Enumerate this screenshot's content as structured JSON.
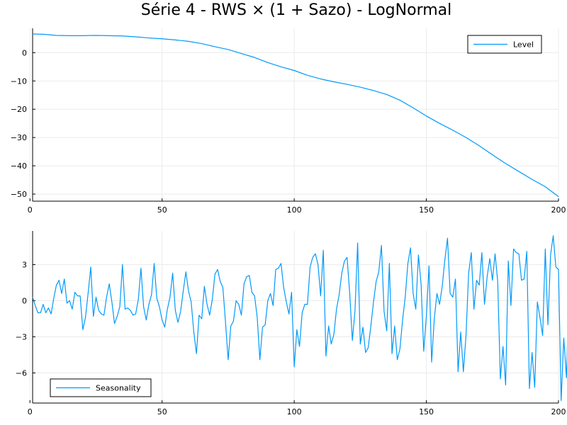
{
  "title": "Série 4 - RWS × (1 + Sazo) - LogNormal",
  "colors": {
    "series": "#009AFA",
    "axis": "#000000",
    "grid": "#EBEBEB",
    "background": "#FFFFFF"
  },
  "chart_data": [
    {
      "type": "line",
      "xlim": [
        1,
        200
      ],
      "ylim": [
        -52.5,
        8.6
      ],
      "xticks": [
        0,
        50,
        100,
        150,
        200
      ],
      "yticks": [
        0,
        -10,
        -20,
        -30,
        -40,
        -50
      ],
      "grid": true,
      "legend_position": "top-right",
      "series": [
        {
          "name": "Level",
          "points": [
            [
              1,
              6.6
            ],
            [
              5,
              6.5
            ],
            [
              10,
              6.1
            ],
            [
              15,
              6.0
            ],
            [
              20,
              6.0
            ],
            [
              25,
              6.1
            ],
            [
              30,
              6.0
            ],
            [
              35,
              5.9
            ],
            [
              40,
              5.6
            ],
            [
              45,
              5.2
            ],
            [
              50,
              4.9
            ],
            [
              55,
              4.5
            ],
            [
              60,
              4.0
            ],
            [
              65,
              3.2
            ],
            [
              70,
              2.1
            ],
            [
              75,
              1.1
            ],
            [
              80,
              -0.3
            ],
            [
              85,
              -1.7
            ],
            [
              90,
              -3.5
            ],
            [
              95,
              -5.0
            ],
            [
              100,
              -6.3
            ],
            [
              105,
              -8.0
            ],
            [
              110,
              -9.3
            ],
            [
              115,
              -10.3
            ],
            [
              120,
              -11.2
            ],
            [
              125,
              -12.2
            ],
            [
              130,
              -13.4
            ],
            [
              135,
              -14.8
            ],
            [
              140,
              -16.8
            ],
            [
              145,
              -19.5
            ],
            [
              150,
              -22.4
            ],
            [
              155,
              -25.0
            ],
            [
              160,
              -27.4
            ],
            [
              165,
              -30.0
            ],
            [
              170,
              -32.9
            ],
            [
              175,
              -36.1
            ],
            [
              180,
              -39.2
            ],
            [
              185,
              -42.0
            ],
            [
              190,
              -44.8
            ],
            [
              195,
              -47.4
            ],
            [
              200,
              -50.9
            ]
          ]
        }
      ]
    },
    {
      "type": "line",
      "xlim": [
        1,
        200
      ],
      "ylim": [
        -8.5,
        5.8
      ],
      "xticks": [
        0,
        50,
        100,
        150,
        200
      ],
      "yticks": [
        3,
        0,
        -3,
        -6
      ],
      "grid": true,
      "legend_position": "bottom-left",
      "series": [
        {
          "name": "Seasonality",
          "values": [
            0.3,
            -0.4,
            -1.0,
            -1.0,
            -0.3,
            -1.0,
            -0.6,
            -1.1,
            0.2,
            1.3,
            1.7,
            0.6,
            1.8,
            -0.2,
            0.0,
            -0.7,
            0.7,
            0.4,
            0.4,
            -2.4,
            -1.4,
            0.6,
            2.8,
            -1.3,
            0.3,
            -0.8,
            -1.1,
            -1.2,
            0.3,
            1.4,
            -0.1,
            -1.9,
            -1.3,
            -0.5,
            3.0,
            -0.7,
            -0.6,
            -0.8,
            -1.2,
            -1.1,
            0.1,
            2.7,
            -0.5,
            -1.6,
            -0.3,
            0.5,
            3.1,
            0.2,
            -0.5,
            -1.6,
            -2.2,
            -0.7,
            0.3,
            2.3,
            -0.8,
            -1.8,
            -0.9,
            0.8,
            2.4,
            0.8,
            -0.1,
            -2.6,
            -4.4,
            -1.2,
            -1.5,
            1.2,
            -0.3,
            -1.2,
            0.1,
            2.2,
            2.6,
            1.6,
            1.1,
            -1.8,
            -4.9,
            -2.1,
            -1.7,
            0.0,
            -0.3,
            -1.2,
            1.4,
            2.0,
            2.1,
            0.7,
            0.4,
            -1.4,
            -4.9,
            -2.2,
            -2.0,
            0.0,
            0.6,
            -0.4,
            2.6,
            2.7,
            3.1,
            1.1,
            -0.1,
            -1.1,
            0.7,
            -5.5,
            -2.4,
            -3.8,
            -1.0,
            -0.3,
            -0.3,
            2.8,
            3.6,
            3.9,
            3.0,
            0.4,
            4.2,
            -4.6,
            -2.1,
            -3.6,
            -2.8,
            -0.7,
            0.5,
            2.3,
            3.3,
            3.6,
            0.6,
            -3.3,
            -0.8,
            4.8,
            -3.6,
            -2.2,
            -4.3,
            -3.9,
            -2.1,
            -0.1,
            1.6,
            2.4,
            4.6,
            -0.9,
            -2.5,
            3.1,
            -4.4,
            -2.1,
            -4.9,
            -4.0,
            -1.6,
            0.3,
            3.1,
            4.4,
            0.6,
            -0.7,
            3.8,
            1.4,
            -4.2,
            -1.3,
            2.9,
            -5.1,
            -1.5,
            0.6,
            -0.3,
            1.2,
            3.4,
            5.2,
            0.6,
            0.3,
            1.8,
            -5.9,
            -2.6,
            -5.9,
            -2.9,
            2.3,
            4.0,
            -0.7,
            1.7,
            1.3,
            4.0,
            -0.3,
            2.0,
            3.5,
            1.7,
            3.9,
            1.6,
            -6.5,
            -3.8,
            -7.0,
            3.3,
            -0.4,
            4.3,
            4.0,
            3.9,
            1.7,
            1.8,
            4.1,
            -7.3,
            -4.3,
            -7.2,
            -0.1,
            -1.4,
            -2.9,
            4.3,
            -2.0,
            3.8,
            5.4,
            2.8,
            2.6,
            -8.3,
            -3.1,
            -6.4,
            1.0,
            -4.2
          ]
        }
      ]
    }
  ]
}
